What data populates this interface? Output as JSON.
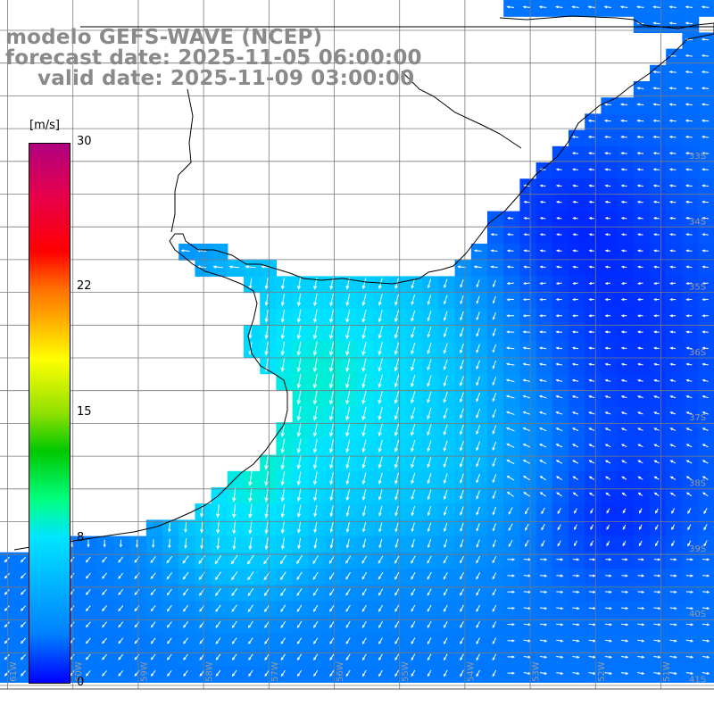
{
  "title": {
    "line1": "modelo GEFS-WAVE (NCEP)",
    "line2": "forecast date: 2025-11-05 06:00:00",
    "line3": "valid date: 2025-11-09 03:00:00"
  },
  "colorbar": {
    "unit": "[m/s]",
    "ticks": [
      {
        "value": 30,
        "label": "30"
      },
      {
        "value": 22,
        "label": "22"
      },
      {
        "value": 15,
        "label": "15"
      },
      {
        "value": 8,
        "label": "8"
      },
      {
        "value": 0,
        "label": "0"
      }
    ],
    "min": 0,
    "max": 30
  },
  "map": {
    "latitude_labels": [
      "33S",
      "34S",
      "35S",
      "36S",
      "37S",
      "38S",
      "39S",
      "40S",
      "41S"
    ],
    "longitude_labels": [
      "61W",
      "60W",
      "59W",
      "58W",
      "57W",
      "56W",
      "55W",
      "54W",
      "53W",
      "52W",
      "51W"
    ],
    "colors": {
      "land": "#ffffff",
      "coastline": "#000000",
      "grid": "#7a7a7a",
      "arrows": "#ffffff"
    }
  }
}
